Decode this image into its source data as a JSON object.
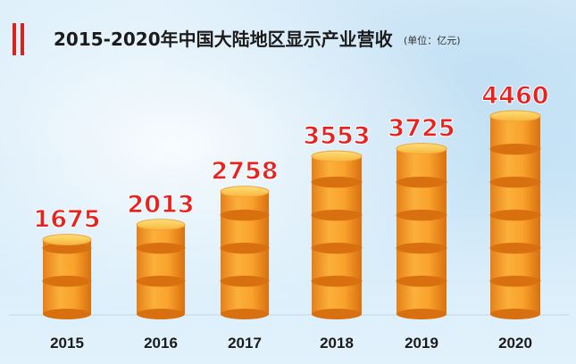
{
  "title": "2015-2020年中国大陆地区显示产业营收",
  "unit": "(单位：亿元)",
  "chart_data": {
    "type": "bar",
    "categories": [
      "2015",
      "2016",
      "2017",
      "2018",
      "2019",
      "2020"
    ],
    "values": [
      1675,
      2013,
      2758,
      3553,
      3725,
      4460
    ],
    "data_labels": [
      "1675",
      "2013",
      "2758",
      "3553",
      "3725",
      "4460"
    ],
    "ylim": [
      0,
      4460
    ],
    "grid": false,
    "legend": "none",
    "colors": {
      "bar": "#f7a12a",
      "bar_top": "#ffd25a",
      "label": "#e8231f",
      "axis": "#c9d4dc"
    }
  }
}
